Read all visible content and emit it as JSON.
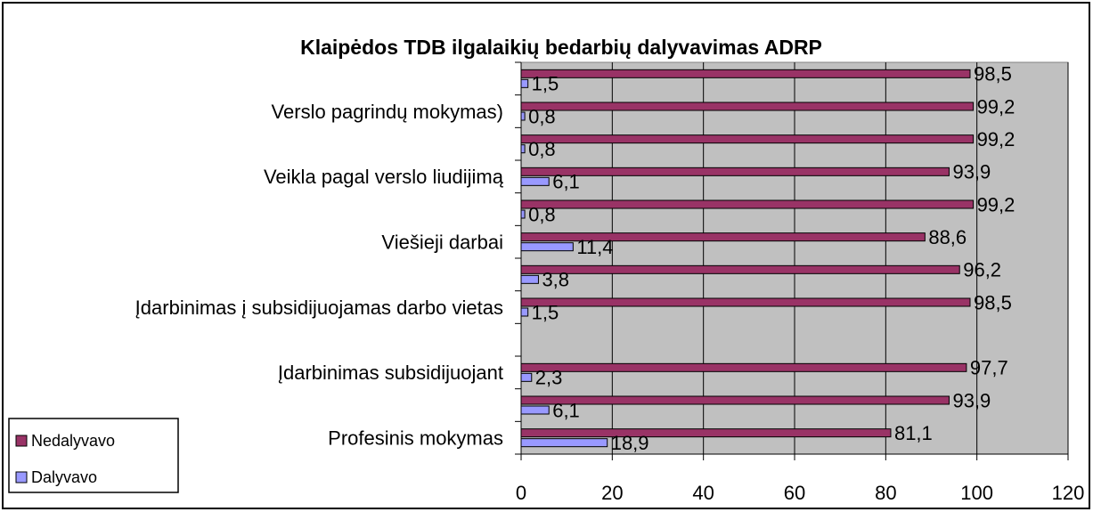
{
  "chart_data": {
    "type": "hbar",
    "title": "Klaipėdos TDB ilgalaikių bedarbių dalyvavimas ADRP",
    "categories": [
      null,
      "Verslo pagrindų mokymas)",
      null,
      "Veikla pagal verslo liudijimą",
      null,
      "Viešieji darbai",
      null,
      "Įdarbinimas į subsidijuojamas darbo vietas",
      null,
      "Įdarbinimas subsidijuojant",
      null,
      "Profesinis mokymas"
    ],
    "series": [
      {
        "name": "Nedalyvavo",
        "color": "#993366",
        "values": [
          98.5,
          99.2,
          99.2,
          93.9,
          99.2,
          88.6,
          96.2,
          98.5,
          null,
          97.7,
          93.9,
          81.1
        ],
        "value_labels": [
          "98,5",
          "99,2",
          "99,2",
          "93,9",
          "99,2",
          "88,6",
          "96,2",
          "98,5",
          null,
          "97,7",
          "93,9",
          "81,1"
        ]
      },
      {
        "name": "Dalyvavo",
        "color": "#9999ff",
        "values": [
          1.5,
          0.8,
          0.8,
          6.1,
          0.8,
          11.4,
          3.8,
          1.5,
          null,
          2.3,
          6.1,
          18.9
        ],
        "value_labels": [
          "1,5",
          "0,8",
          "0,8",
          "6,1",
          "0,8",
          "11,4",
          "3,8",
          "1,5",
          null,
          "2,3",
          "6,1",
          "18,9"
        ]
      }
    ],
    "xlim": [
      0,
      120
    ],
    "xticks": [
      0,
      20,
      40,
      60,
      80,
      100,
      120
    ],
    "grid": true,
    "legend": "bottom-left"
  }
}
